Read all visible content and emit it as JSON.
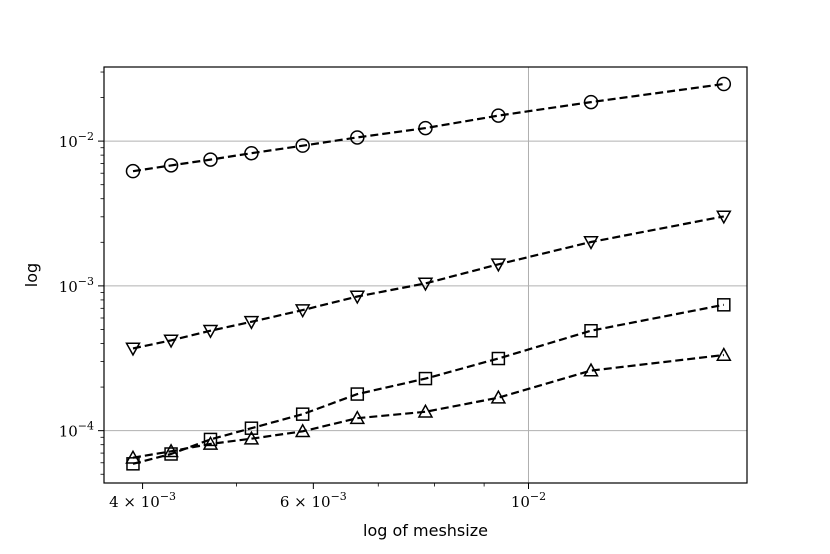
{
  "chart_data": {
    "type": "line",
    "title": "",
    "xlabel": "log of meshsize",
    "ylabel": "log",
    "xscale": "log",
    "yscale": "log",
    "xlim": [
      0.00365,
      0.0168
    ],
    "ylim": [
      4.35e-05,
      0.0325
    ],
    "grid": "major",
    "x_ticks": [
      {
        "value": 0.004,
        "mantissa": "4 × 10",
        "exp": "−3"
      },
      {
        "value": 0.006,
        "mantissa": "6 × 10",
        "exp": "−3"
      },
      {
        "value": 0.01,
        "mantissa": "10",
        "exp": "−2"
      }
    ],
    "y_ticks": [
      {
        "value": 0.0001,
        "mantissa": "10",
        "exp": "−4"
      },
      {
        "value": 0.001,
        "mantissa": "10",
        "exp": "−3"
      },
      {
        "value": 0.01,
        "mantissa": "10",
        "exp": "−2"
      }
    ],
    "x": [
      0.00391,
      0.00428,
      0.0047,
      0.00518,
      0.00585,
      0.00666,
      0.00783,
      0.00931,
      0.0116,
      0.0159
    ],
    "series": [
      {
        "marker": "circle",
        "values": [
          0.0062,
          0.0068,
          0.00745,
          0.00825,
          0.0093,
          0.0106,
          0.0123,
          0.015,
          0.0186,
          0.0248
        ]
      },
      {
        "marker": "triangle-down",
        "values": [
          0.00037,
          0.00042,
          0.00049,
          0.000565,
          0.00068,
          0.000845,
          0.00104,
          0.00141,
          0.00201,
          0.00302
        ]
      },
      {
        "marker": "square",
        "values": [
          5.9e-05,
          6.9e-05,
          8.7e-05,
          0.000104,
          0.00013,
          0.000179,
          0.000229,
          0.000315,
          0.00049,
          0.00074
        ]
      },
      {
        "marker": "triangle-up",
        "values": [
          6.5e-05,
          7.2e-05,
          8.1e-05,
          8.8e-05,
          9.9e-05,
          0.000122,
          0.000135,
          0.000169,
          0.00026,
          0.000333
        ]
      }
    ]
  }
}
